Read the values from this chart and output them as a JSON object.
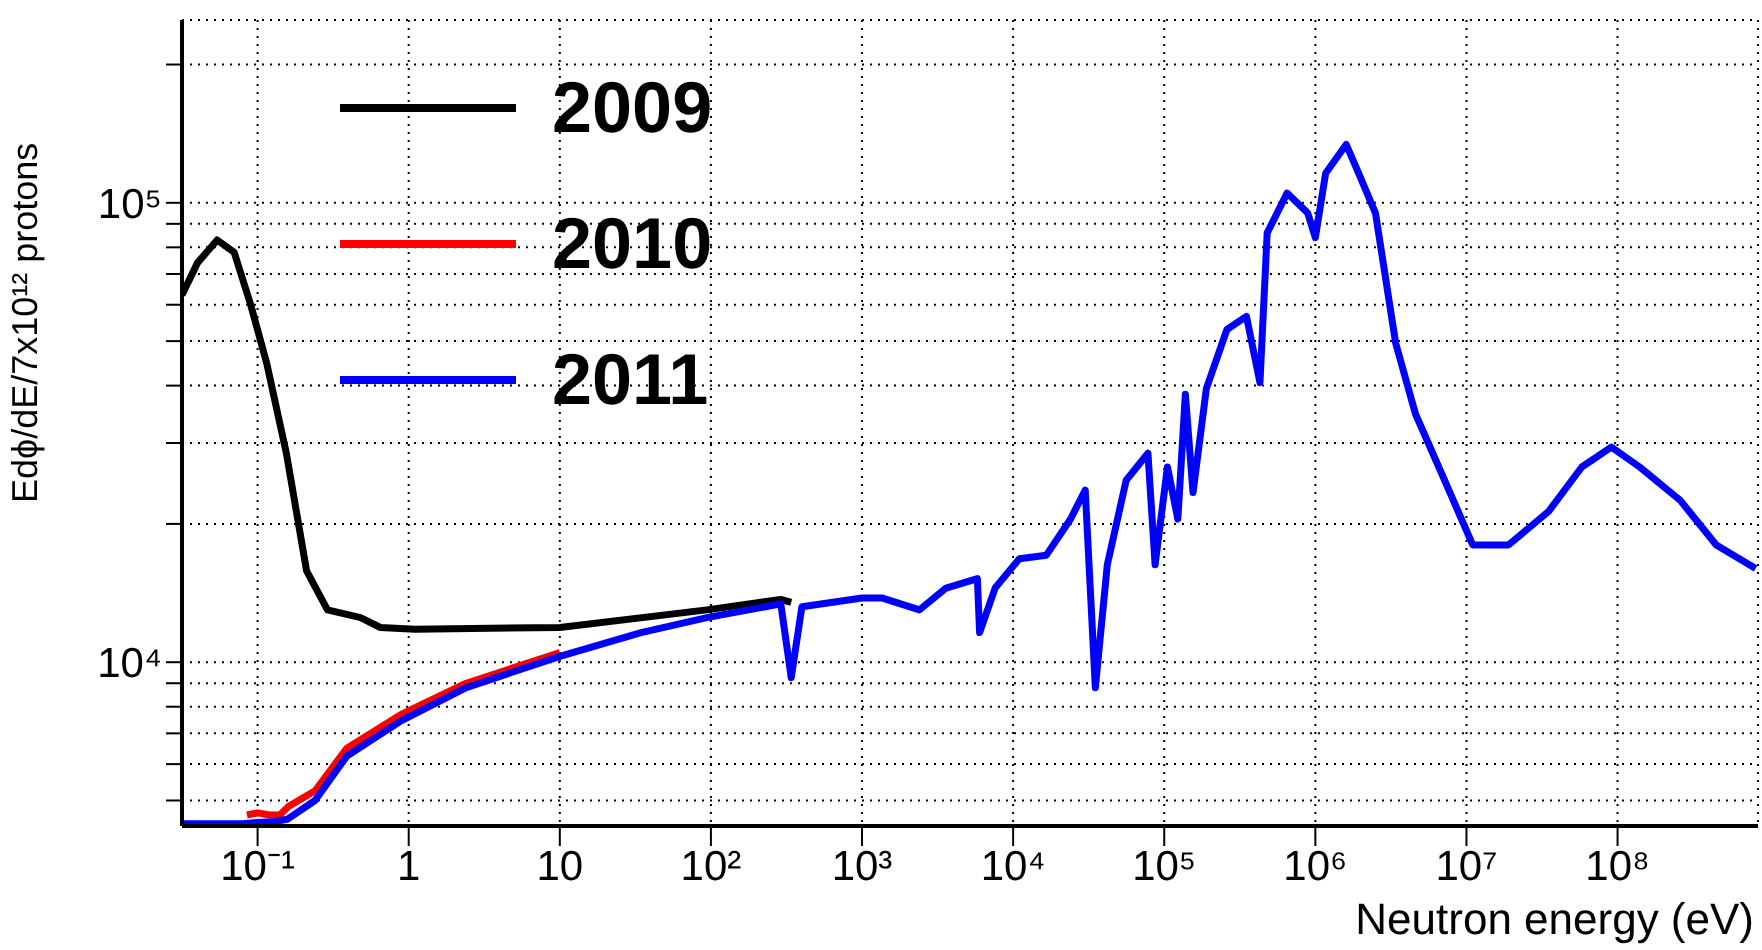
{
  "chart_data": {
    "type": "line",
    "xlabel": "Neutron energy (eV)",
    "ylabel": "Edϕ/dE/7x10¹² protons",
    "log": "xy",
    "grid": true,
    "legend": "top left",
    "xlim": [
      0.0316,
      850000000
    ],
    "ylim": [
      4400,
      250000
    ],
    "xticks": [
      {
        "value": 0.1,
        "label": "10⁻¹"
      },
      1,
      10,
      {
        "value": 100,
        "label": "10²"
      },
      {
        "value": 1000,
        "label": "10³"
      },
      {
        "value": 10000,
        "label": "10⁴"
      },
      {
        "value": 100000,
        "label": "10⁵"
      },
      {
        "value": 1000000,
        "label": "10⁶"
      },
      {
        "value": 10000000,
        "label": "10⁷"
      },
      {
        "value": 100000000,
        "label": "10⁸"
      }
    ],
    "yticks": [
      {
        "value": 5000,
        "label": null
      },
      {
        "value": 6000,
        "label": null
      },
      {
        "value": 7000,
        "label": null
      },
      {
        "value": 8000,
        "label": null
      },
      {
        "value": 9000,
        "label": null
      },
      {
        "value": 10000,
        "label": "10⁴"
      },
      {
        "value": 20000,
        "label": null
      },
      {
        "value": 30000,
        "label": null
      },
      {
        "value": 40000,
        "label": null
      },
      {
        "value": 50000,
        "label": null
      },
      {
        "value": 60000,
        "label": null
      },
      {
        "value": 70000,
        "label": null
      },
      {
        "value": 80000,
        "label": null
      },
      {
        "value": 90000,
        "label": null
      },
      {
        "value": 100000,
        "label": "10⁵"
      },
      {
        "value": 200000,
        "label": null
      }
    ],
    "series": [
      {
        "name": "2009",
        "color": "#000000",
        "x": [
          0.0316,
          0.04,
          0.054,
          0.07,
          0.09,
          0.115,
          0.155,
          0.211,
          0.29,
          0.48,
          0.65,
          1.1,
          10,
          94,
          290,
          340
        ],
        "values": [
          63000,
          74000,
          83000,
          78000,
          60000,
          44700,
          28500,
          15800,
          13000,
          12500,
          11900,
          11800,
          11900,
          13000,
          13700,
          13500
        ]
      },
      {
        "name": "2010",
        "color": "#ff0000",
        "x": [
          0.085,
          0.1,
          0.12,
          0.14,
          0.16,
          0.24,
          0.39,
          0.89,
          2.4,
          10
        ],
        "values": [
          4650,
          4700,
          4650,
          4650,
          4850,
          5250,
          6500,
          7700,
          9000,
          10500
        ]
      },
      {
        "name": "2011",
        "color": "#0000ff",
        "x": [
          0.0316,
          0.08,
          0.1,
          0.13,
          0.157,
          0.24,
          0.39,
          0.89,
          2.4,
          10,
          34.5,
          94,
          290,
          340,
          400,
          1000,
          1350,
          2400,
          3600,
          5800,
          6000,
          7600,
          11000,
          16600,
          24000,
          30000,
          35000,
          42000,
          56000,
          78000,
          87000,
          105000,
          123000,
          138000,
          155000,
          190000,
          260000,
          350000,
          430000,
          480000,
          650000,
          890000,
          1000000,
          1170000,
          1600000,
          2000000,
          2500000,
          3400000,
          4600000,
          6800000,
          11000000,
          19000000,
          35000000,
          58000000,
          91000000,
          140000000,
          260000000,
          450000000,
          820000000
        ],
        "values": [
          4450,
          4450,
          4480,
          4500,
          4550,
          5000,
          6250,
          7450,
          8800,
          10300,
          11600,
          12500,
          13400,
          9250,
          13200,
          13800,
          13800,
          13000,
          14500,
          15200,
          11600,
          14500,
          16800,
          17100,
          20500,
          23700,
          8800,
          16300,
          24900,
          28500,
          16300,
          26600,
          20500,
          38300,
          23400,
          39400,
          53000,
          56600,
          40600,
          86000,
          105000,
          95000,
          84000,
          116000,
          134000,
          113000,
          95000,
          49500,
          34700,
          25900,
          18000,
          18000,
          21300,
          26600,
          29400,
          26600,
          22500,
          18000,
          16000
        ]
      }
    ]
  }
}
